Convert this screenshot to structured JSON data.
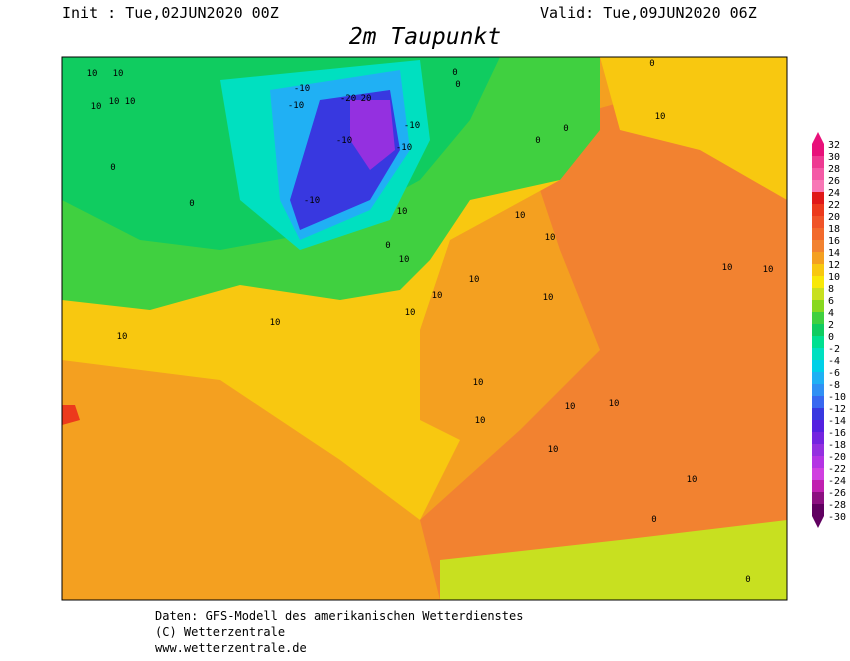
{
  "header": {
    "init": "Init : Tue,02JUN2020 00Z",
    "valid": "Valid: Tue,09JUN2020 06Z",
    "title": "2m Taupunkt"
  },
  "colorbar": {
    "levels": [
      "32",
      "30",
      "28",
      "26",
      "24",
      "22",
      "20",
      "18",
      "16",
      "14",
      "12",
      "10",
      "8",
      "6",
      "4",
      "2",
      "0",
      "-2",
      "-4",
      "-6",
      "-8",
      "-10",
      "-12",
      "-14",
      "-16",
      "-18",
      "-20",
      "-22",
      "-24",
      "-26",
      "-28",
      "-30"
    ],
    "colors": [
      "#e8107a",
      "#ee3a92",
      "#f45aa6",
      "#f878b6",
      "#e01818",
      "#ec3a1c",
      "#f05428",
      "#f26a2c",
      "#f28230",
      "#f4a020",
      "#f8c810",
      "#f8e808",
      "#c8e020",
      "#88d820",
      "#40d040",
      "#10cc60",
      "#00e090",
      "#00e0c0",
      "#00d0e8",
      "#20b0f4",
      "#3090f4",
      "#3868f0",
      "#3838e0",
      "#5420e0",
      "#7424e0",
      "#9430e0",
      "#b434e4",
      "#d040e0",
      "#c020b0",
      "#8c1080",
      "#600060"
    ]
  },
  "contour_labels": [
    "10",
    "10",
    "10",
    "10",
    "10",
    "-10",
    "-10",
    "-20",
    "20",
    "-10",
    "-10",
    "-10",
    "-10",
    "0",
    "0",
    "0",
    "0",
    "0",
    "0",
    "0",
    "10",
    "10",
    "10",
    "10",
    "10",
    "10",
    "10",
    "10",
    "10",
    "10",
    "10",
    "10",
    "10",
    "10",
    "10",
    "10",
    "0",
    "0",
    "0",
    "10",
    "10",
    "10"
  ],
  "footer": {
    "line1": "Daten: GFS-Modell des amerikanischen Wetterdienstes",
    "line2": "(C) Wetterzentrale",
    "line3": "www.wetterzentrale.de"
  }
}
